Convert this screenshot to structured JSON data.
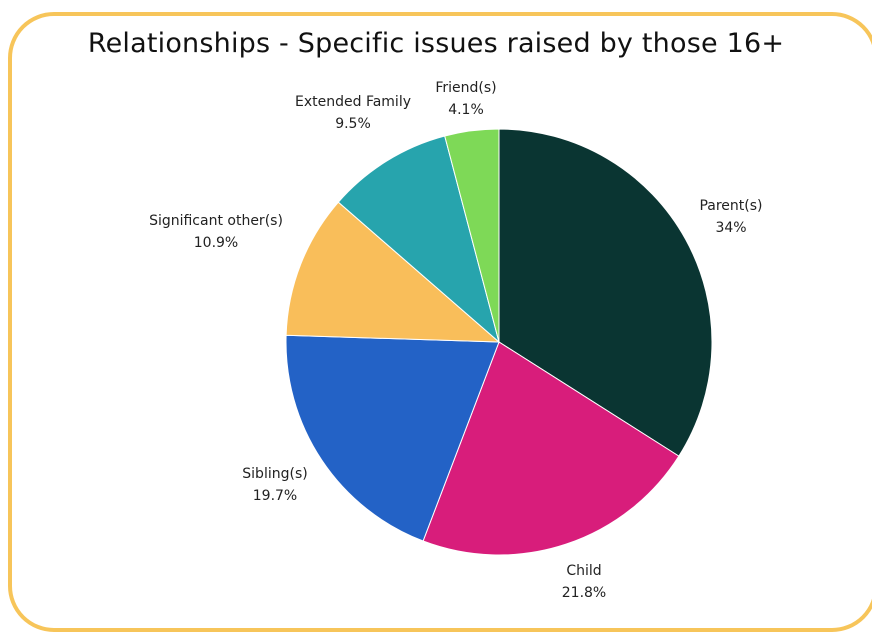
{
  "chart_data": {
    "type": "pie",
    "title": "Relationships - Specific issues raised by those 16+",
    "slices": [
      {
        "name": "Parent(s)",
        "value": 34,
        "display": "34%",
        "color": "#0a3532"
      },
      {
        "name": "Child",
        "value": 21.8,
        "display": "21.8%",
        "color": "#d81d7b"
      },
      {
        "name": "Sibling(s)",
        "value": 19.7,
        "display": "19.7%",
        "color": "#2362c6"
      },
      {
        "name": "Significant other(s)",
        "value": 10.9,
        "display": "10.9%",
        "color": "#f9be5a"
      },
      {
        "name": "Extended Family",
        "value": 9.5,
        "display": "9.5%",
        "color": "#27a4ad"
      },
      {
        "name": "Friend(s)",
        "value": 4.1,
        "display": "4.1%",
        "color": "#7ed957"
      }
    ],
    "frame_color": "#f7c55a",
    "start": "12 o'clock",
    "direction": "clockwise"
  }
}
